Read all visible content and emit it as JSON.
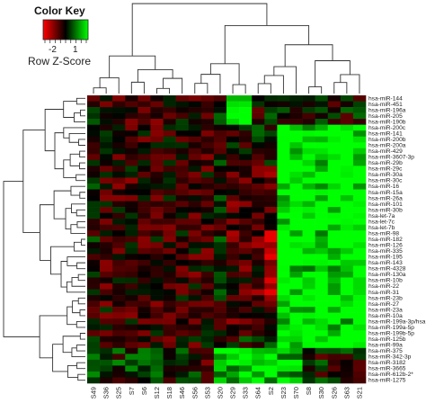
{
  "chart_data": {
    "type": "heatmap",
    "color_key": {
      "title": "Color Key",
      "scale_label": "Row Z-Score",
      "tick_labels": [
        "-2",
        "1"
      ],
      "colors": [
        "#ff0000",
        "#000000",
        "#00ff00"
      ]
    },
    "rows": [
      "hsa-miR-144",
      "hsa-miR-451",
      "hsa-miR-196a",
      "hsa-miR-205",
      "hsa-miR-190b",
      "hsa-miR-200c",
      "hsa-miR-141",
      "hsa-miR-200b",
      "hsa-miR-200a",
      "hsa-miR-429",
      "hsa-miR-3607-3p",
      "hsa-miR-29b",
      "hsa-miR-29c",
      "hsa-miR-30a",
      "hsa-miR-30c",
      "hsa-miR-16",
      "hsa-miR-15a",
      "hsa-miR-26a",
      "hsa-miR-101",
      "hsa-miR-30b",
      "hsa-let-7a",
      "hsa-let-7c",
      "hsa-let-7b",
      "hsa-miR-98",
      "hsa-miR-182",
      "hsa-miR-126",
      "hsa-miR-335",
      "hsa-miR-195",
      "hsa-miR-143",
      "hsa-miR-4328",
      "hsa-miR-130a",
      "hsa-miR-10b",
      "hsa-miR-22",
      "hsa-miR-31",
      "hsa-miR-23b",
      "hsa-miR-27",
      "hsa-miR-23a",
      "hsa-miR-10a",
      "hsa-miR-199a-3p/hsa",
      "hsa-miR-199a-5p",
      "hsa-miR-199b-5p",
      "hsa-miR-125b",
      "hsa-miR-99a",
      "hsa-miR-375",
      "hsa-miR-342-3p",
      "hsa-miR-3182",
      "hsa-miR-3665",
      "hsa-miR-612b-2*",
      "hsa-miR-1275"
    ],
    "columns": [
      "S49",
      "S36",
      "S25",
      "S7",
      "S6",
      "S12",
      "S18",
      "S46",
      "S56",
      "S53",
      "S20",
      "S29",
      "S33",
      "S64",
      "S2",
      "S23",
      "S70",
      "S8",
      "S30",
      "S26",
      "S63",
      "S21"
    ],
    "values_note": "row z-scores, approximate"
  }
}
